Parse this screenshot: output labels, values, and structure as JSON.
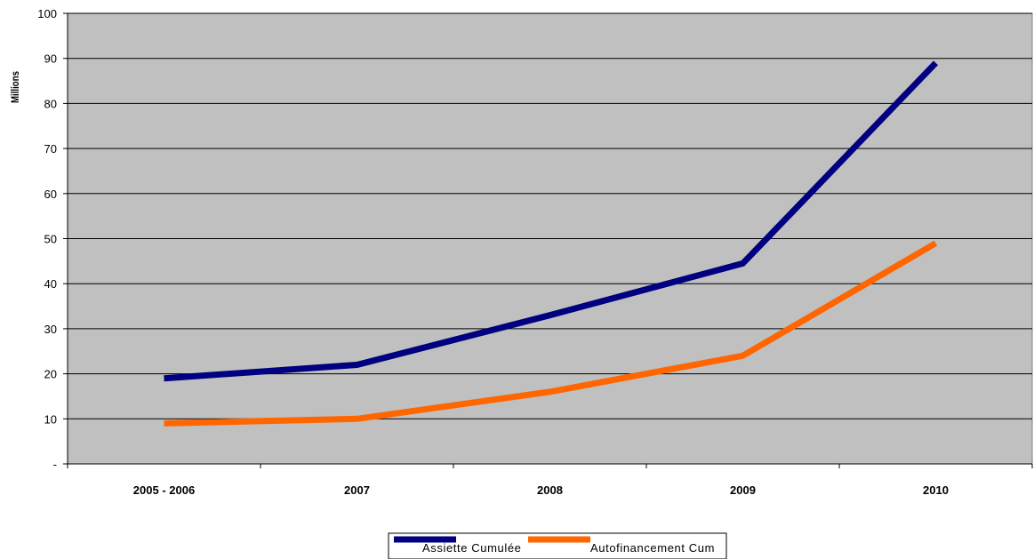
{
  "chart_data": {
    "type": "line",
    "categories": [
      "2005 - 2006",
      "2007",
      "2008",
      "2009",
      "2010"
    ],
    "series": [
      {
        "name": "Assiette Cumulée",
        "values": [
          19,
          22,
          33,
          44.5,
          89
        ],
        "color": "#000080"
      },
      {
        "name": "Autofinancement Cum",
        "values": [
          9,
          10,
          16,
          24,
          49
        ],
        "color": "#ff6600"
      }
    ],
    "ylim": [
      0,
      100
    ],
    "yticks": [
      0,
      10,
      20,
      30,
      40,
      50,
      60,
      70,
      80,
      90,
      100
    ],
    "ytick_labels": [
      "-",
      "10",
      "20",
      "30",
      "40",
      "50",
      "60",
      "70",
      "80",
      "90",
      "100"
    ],
    "ylabel": "Millions",
    "xlabel": "",
    "title": "",
    "grid": true,
    "plot_background": "#c0c0c0",
    "legend_position": "bottom-center"
  }
}
